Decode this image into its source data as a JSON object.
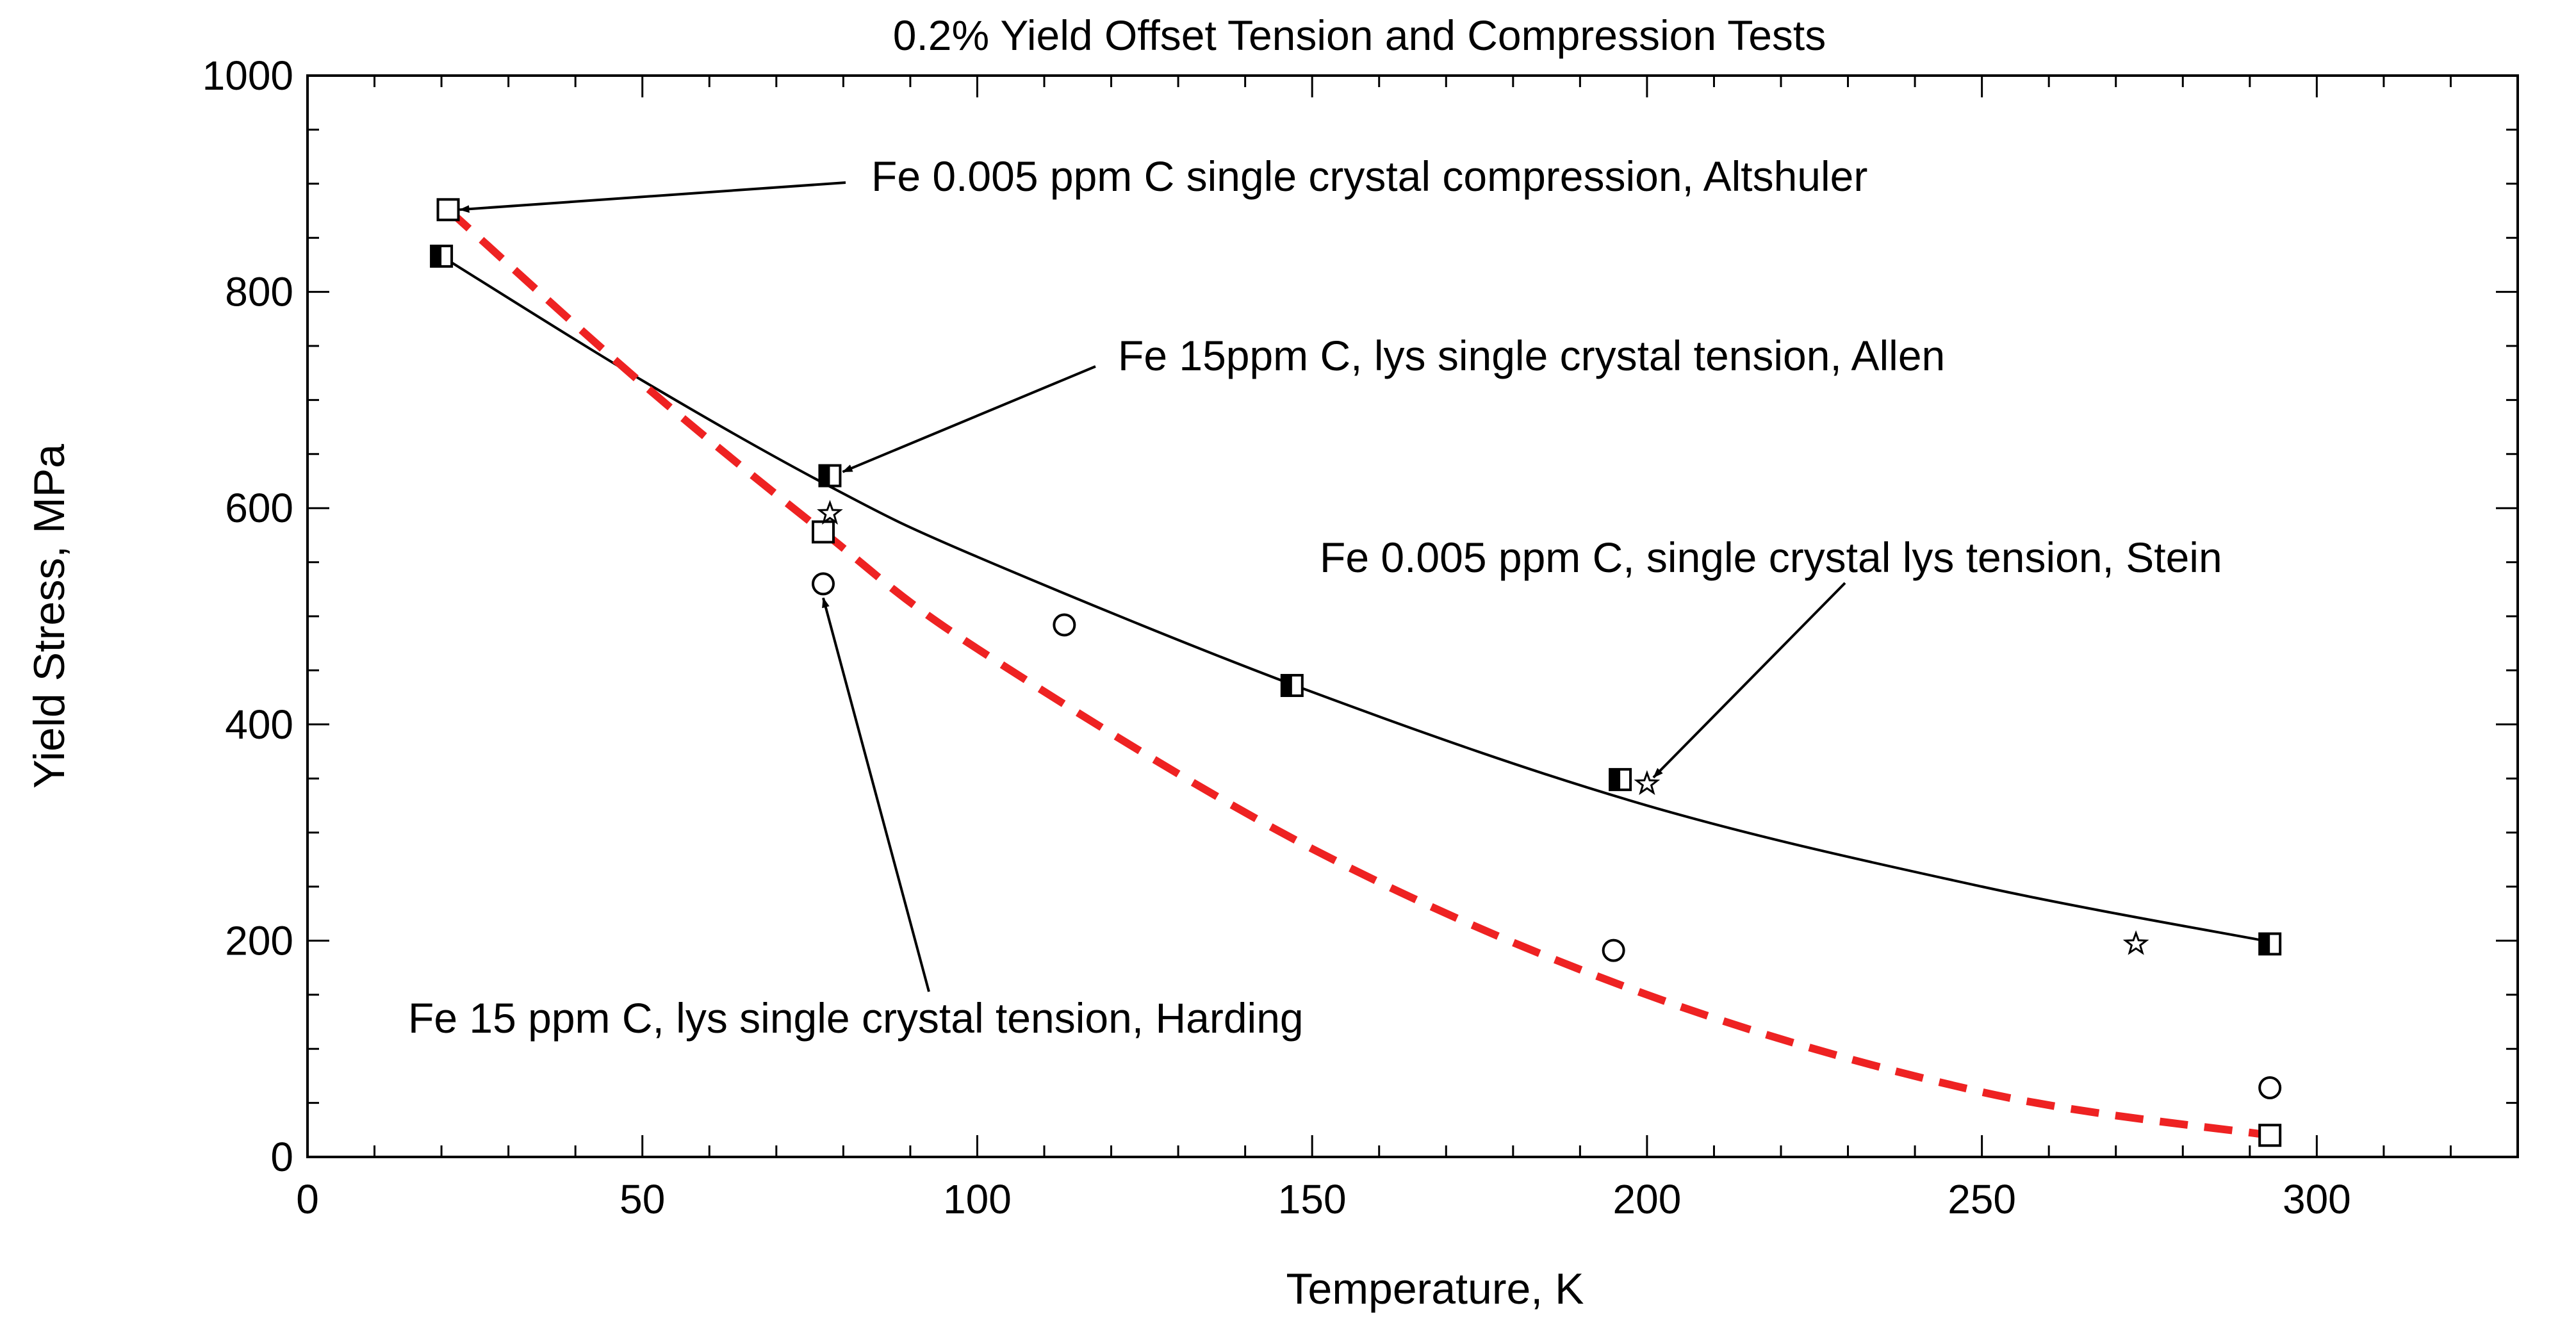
{
  "chart_data": {
    "type": "scatter",
    "title": "0.2% Yield Offset Tension and Compression Tests",
    "xlabel": "Temperature, K",
    "ylabel": "Yield Stress, MPa",
    "xlim": [
      0,
      330
    ],
    "ylim": [
      0,
      1000
    ],
    "x_ticks": [
      0,
      50,
      100,
      150,
      200,
      250,
      300
    ],
    "y_ticks": [
      0,
      200,
      400,
      600,
      800,
      1000
    ],
    "grid": false,
    "series": [
      {
        "name": "Fe 0.005 ppm C single crystal compression, Altshuler",
        "marker": "open-square",
        "x": [
          21,
          77,
          293
        ],
        "y": [
          876,
          578,
          20
        ]
      },
      {
        "name": "Fe 15ppm C, lys single crystal tension, Allen",
        "marker": "half-filled-square",
        "x": [
          20,
          78,
          147,
          196,
          293
        ],
        "y": [
          833,
          630,
          436,
          349,
          197
        ]
      },
      {
        "name": "Fe 0.005 ppm C, single crystal lys tension, Stein",
        "marker": "star",
        "x": [
          78,
          200,
          273
        ],
        "y": [
          595,
          345,
          197
        ]
      },
      {
        "name": "Fe 15 ppm C, lys single crystal tension, Harding",
        "marker": "open-circle",
        "x": [
          77,
          113,
          195,
          293
        ],
        "y": [
          530,
          492,
          191,
          64
        ]
      }
    ],
    "fits": [
      {
        "name": "solid-fit",
        "style": "solid",
        "color": "#000000",
        "x": [
          20,
          50,
          78,
          100,
          150,
          200,
          250,
          293
        ],
        "y": [
          833,
          718,
          620,
          555,
          430,
          325,
          250,
          199
        ]
      },
      {
        "name": "dashed-fit",
        "style": "dashed",
        "color": "#ee2222",
        "x": [
          21,
          50,
          77,
          100,
          150,
          200,
          250,
          293
        ],
        "y": [
          876,
          715,
          578,
          470,
          285,
          150,
          60,
          20
        ]
      }
    ],
    "annotations": [
      {
        "text": "Fe 0.005 ppm C single crystal compression, Altshuler",
        "target": [
          21,
          876
        ]
      },
      {
        "text": "Fe 15ppm C, lys single crystal tension, Allen",
        "target": [
          78,
          630
        ]
      },
      {
        "text": "Fe 0.005 ppm C, single crystal lys tension, Stein",
        "target": [
          200,
          345
        ]
      },
      {
        "text": "Fe 15 ppm C, lys single crystal tension, Harding",
        "target": [
          77,
          530
        ]
      }
    ]
  }
}
